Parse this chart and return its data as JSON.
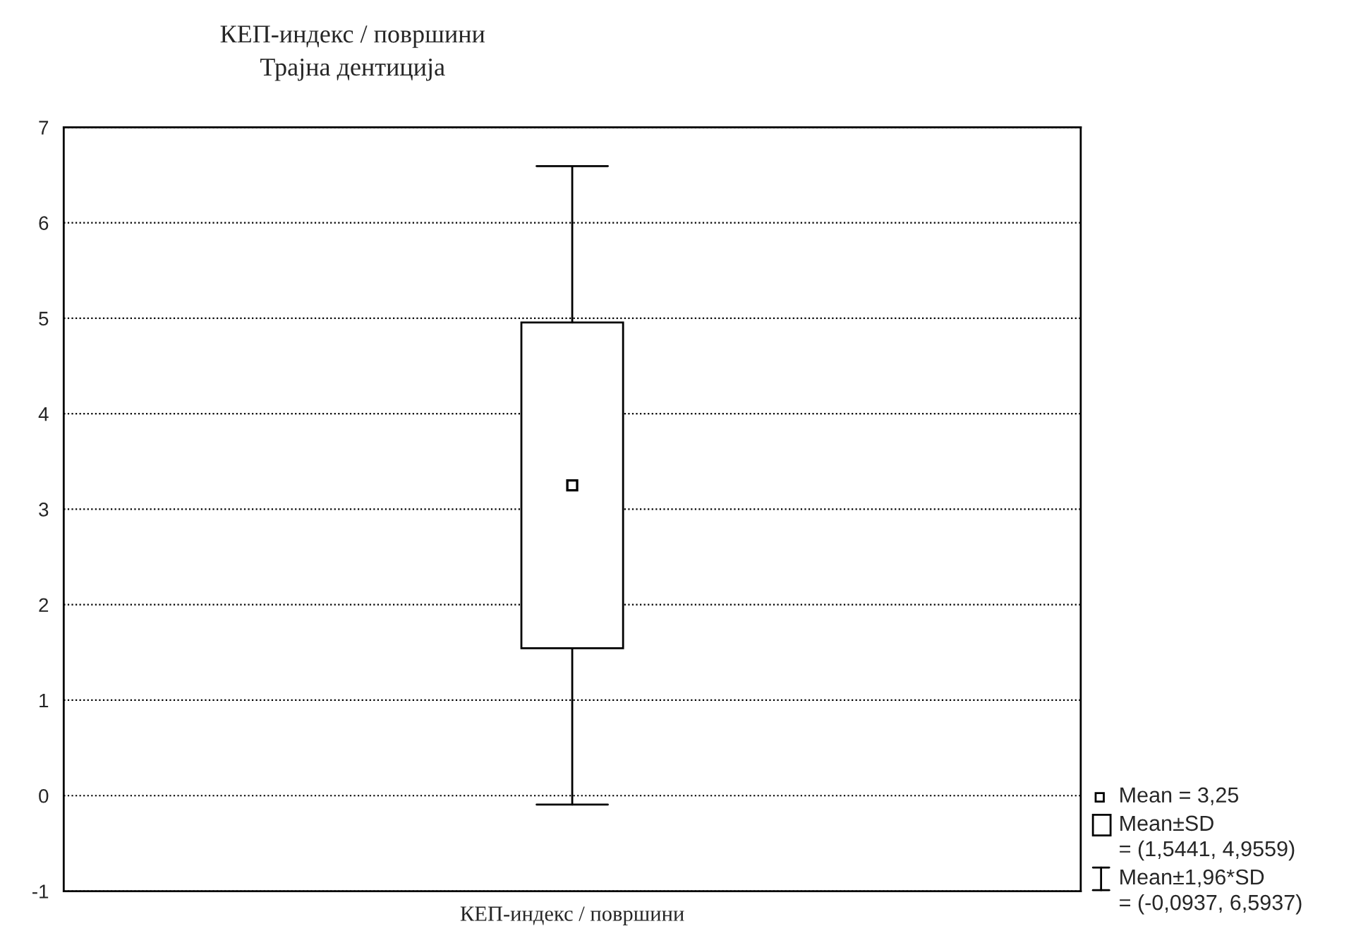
{
  "chart_data": {
    "type": "box",
    "title": "КЕП-индекс / површини",
    "subtitle": "Трајна дентиција",
    "categories": [
      "КЕП-индекс / површини"
    ],
    "boxes": [
      {
        "low": -0.0937,
        "q1": 1.5441,
        "median": 3.25,
        "q3": 4.9559,
        "high": 6.5937
      }
    ],
    "ylim": [
      -1,
      7
    ],
    "yticks": [
      -1,
      0,
      1,
      2,
      3,
      4,
      5,
      6,
      7
    ],
    "grid": "y",
    "annotations": [
      "Mean = 3,25",
      "Mean±SD",
      "= (1,5441, 4,9559)",
      "Mean±1,96*SD",
      "= (-0,0937, 6,5937)"
    ]
  }
}
